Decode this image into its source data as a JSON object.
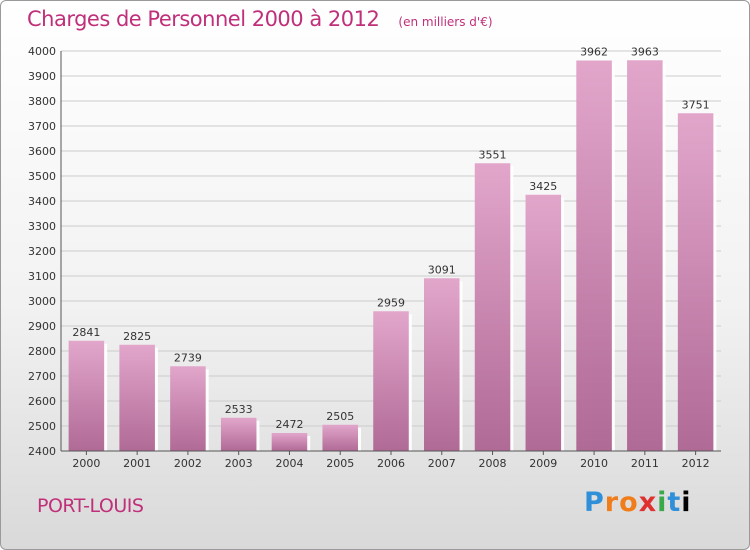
{
  "header": {
    "title": "Charges de Personnel 2000 à 2012",
    "subtitle": "(en milliers d'€)"
  },
  "footer": {
    "commune": "PORT-LOUIS",
    "logo": "Proxiti"
  },
  "colors": {
    "bar": "#c86fa4",
    "title": "#c0307a",
    "grid": "#cccccc"
  },
  "chart_data": {
    "type": "bar",
    "title": "Charges de Personnel 2000 à 2012",
    "subtitle": "(en milliers d'€)",
    "categories": [
      "2000",
      "2001",
      "2002",
      "2003",
      "2004",
      "2005",
      "2006",
      "2007",
      "2008",
      "2009",
      "2010",
      "2011",
      "2012"
    ],
    "values": [
      2841,
      2825,
      2739,
      2533,
      2472,
      2505,
      2959,
      3091,
      3551,
      3425,
      3962,
      3963,
      3751
    ],
    "ylim": [
      2400,
      4000
    ],
    "yticks": [
      2400,
      2500,
      2600,
      2700,
      2800,
      2900,
      3000,
      3100,
      3200,
      3300,
      3400,
      3500,
      3600,
      3700,
      3800,
      3900,
      4000
    ],
    "grid": true,
    "data_labels": true
  }
}
